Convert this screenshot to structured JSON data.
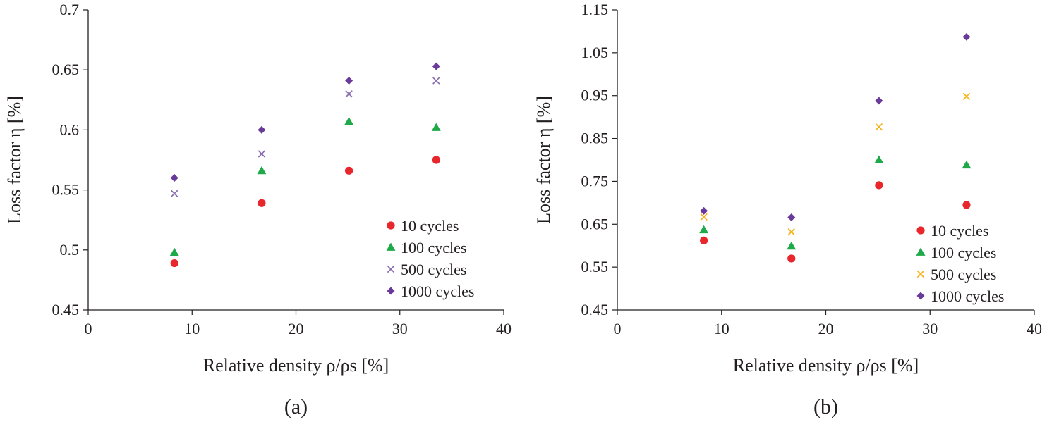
{
  "chart_data": [
    {
      "type": "scatter",
      "panel_label": "(a)",
      "xlabel": "Relative density ρ/ρs [%]",
      "ylabel": "Loss factor η [%]",
      "xlim": [
        0,
        40
      ],
      "ylim": [
        0.45,
        0.7
      ],
      "xticks": [
        0,
        10,
        20,
        30,
        40
      ],
      "xtick_labels": [
        "0",
        "10",
        "20",
        "30",
        "40"
      ],
      "yticks": [
        0.45,
        0.5,
        0.55,
        0.6,
        0.65,
        0.7
      ],
      "ytick_labels": [
        "0.45",
        "0.5",
        "0.55",
        "0.6",
        "0.65",
        "0.7"
      ],
      "grid": false,
      "legend_position": "bottom-right",
      "x": [
        8.3,
        16.7,
        25.1,
        33.5
      ],
      "series": [
        {
          "name": "10 cycles",
          "marker": "circle",
          "color": "#e8262b",
          "values": [
            0.489,
            0.539,
            0.566,
            0.575
          ]
        },
        {
          "name": "100 cycles",
          "marker": "triangle",
          "color": "#1faa4a",
          "values": [
            0.498,
            0.566,
            0.607,
            0.602
          ]
        },
        {
          "name": "500 cycles",
          "marker": "x",
          "color": "#8a6db0",
          "values": [
            0.547,
            0.58,
            0.63,
            0.641
          ]
        },
        {
          "name": "1000 cycles",
          "marker": "diamond",
          "color": "#6a3a9a",
          "values": [
            0.56,
            0.6,
            0.641,
            0.653
          ]
        }
      ]
    },
    {
      "type": "scatter",
      "panel_label": "(b)",
      "xlabel": "Relative density ρ/ρs [%]",
      "ylabel": "Loss factor η [%]",
      "xlim": [
        0,
        40
      ],
      "ylim": [
        0.45,
        1.15
      ],
      "xticks": [
        0,
        10,
        20,
        30,
        40
      ],
      "xtick_labels": [
        "0",
        "10",
        "20",
        "30",
        "40"
      ],
      "yticks": [
        0.45,
        0.55,
        0.65,
        0.75,
        0.85,
        0.95,
        1.05,
        1.15
      ],
      "ytick_labels": [
        "0.45",
        "0.55",
        "0.65",
        "0.75",
        "0.85",
        "0.95",
        "1.05",
        "1.15"
      ],
      "grid": false,
      "legend_position": "bottom-right",
      "x": [
        8.3,
        16.7,
        25.1,
        33.5
      ],
      "series": [
        {
          "name": "10 cycles",
          "marker": "circle",
          "color": "#e8262b",
          "values": [
            0.612,
            0.57,
            0.741,
            0.695
          ]
        },
        {
          "name": "100 cycles",
          "marker": "triangle",
          "color": "#1faa4a",
          "values": [
            0.637,
            0.599,
            0.8,
            0.788
          ]
        },
        {
          "name": "500 cycles",
          "marker": "x",
          "color": "#f6b21a",
          "values": [
            0.667,
            0.632,
            0.877,
            0.948
          ]
        },
        {
          "name": "1000 cycles",
          "marker": "diamond",
          "color": "#6a3a9a",
          "values": [
            0.681,
            0.666,
            0.938,
            1.087
          ]
        }
      ]
    }
  ]
}
